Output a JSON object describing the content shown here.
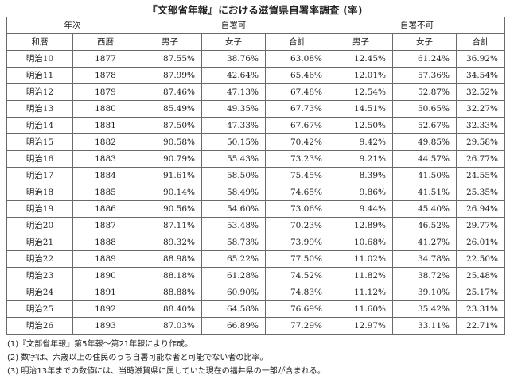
{
  "title": "『文部省年報』における滋賀県自署率調査 (率)",
  "header": {
    "nenji": "年次",
    "group_can": "自署可",
    "group_cannot": "自署不可",
    "wareki": "和暦",
    "seireki": "西暦",
    "male": "男子",
    "female": "女子",
    "total": "合計"
  },
  "rows": [
    {
      "era": "明治10",
      "year": "1877",
      "c": [
        "87.55%",
        "38.76%",
        "63.08%"
      ],
      "n": [
        "12.45%",
        "61.24%",
        "36.92%"
      ]
    },
    {
      "era": "明治11",
      "year": "1878",
      "c": [
        "87.99%",
        "42.64%",
        "65.46%"
      ],
      "n": [
        "12.01%",
        "57.36%",
        "34.54%"
      ]
    },
    {
      "era": "明治12",
      "year": "1879",
      "c": [
        "87.46%",
        "47.13%",
        "67.48%"
      ],
      "n": [
        "12.54%",
        "52.87%",
        "32.52%"
      ]
    },
    {
      "era": "明治13",
      "year": "1880",
      "c": [
        "85.49%",
        "49.35%",
        "67.73%"
      ],
      "n": [
        "14.51%",
        "50.65%",
        "32.27%"
      ]
    },
    {
      "era": "明治14",
      "year": "1881",
      "c": [
        "87.50%",
        "47.33%",
        "67.67%"
      ],
      "n": [
        "12.50%",
        "52.67%",
        "32.33%"
      ]
    },
    {
      "era": "明治15",
      "year": "1882",
      "c": [
        "90.58%",
        "50.15%",
        "70.42%"
      ],
      "n": [
        "9.42%",
        "49.85%",
        "29.58%"
      ]
    },
    {
      "era": "明治16",
      "year": "1883",
      "c": [
        "90.79%",
        "55.43%",
        "73.23%"
      ],
      "n": [
        "9.21%",
        "44.57%",
        "26.77%"
      ]
    },
    {
      "era": "明治17",
      "year": "1884",
      "c": [
        "91.61%",
        "58.50%",
        "75.45%"
      ],
      "n": [
        "8.39%",
        "41.50%",
        "24.55%"
      ]
    },
    {
      "era": "明治18",
      "year": "1885",
      "c": [
        "90.14%",
        "58.49%",
        "74.65%"
      ],
      "n": [
        "9.86%",
        "41.51%",
        "25.35%"
      ]
    },
    {
      "era": "明治19",
      "year": "1886",
      "c": [
        "90.56%",
        "54.60%",
        "73.06%"
      ],
      "n": [
        "9.44%",
        "45.40%",
        "26.94%"
      ]
    },
    {
      "era": "明治20",
      "year": "1887",
      "c": [
        "87.11%",
        "53.48%",
        "70.23%"
      ],
      "n": [
        "12.89%",
        "46.52%",
        "29.77%"
      ]
    },
    {
      "era": "明治21",
      "year": "1888",
      "c": [
        "89.32%",
        "58.73%",
        "73.99%"
      ],
      "n": [
        "10.68%",
        "41.27%",
        "26.01%"
      ]
    },
    {
      "era": "明治22",
      "year": "1889",
      "c": [
        "88.98%",
        "65.22%",
        "77.50%"
      ],
      "n": [
        "11.02%",
        "34.78%",
        "22.50%"
      ]
    },
    {
      "era": "明治23",
      "year": "1890",
      "c": [
        "88.18%",
        "61.28%",
        "74.52%"
      ],
      "n": [
        "11.82%",
        "38.72%",
        "25.48%"
      ]
    },
    {
      "era": "明治24",
      "year": "1891",
      "c": [
        "88.88%",
        "60.90%",
        "74.83%"
      ],
      "n": [
        "11.12%",
        "39.10%",
        "25.17%"
      ]
    },
    {
      "era": "明治25",
      "year": "1892",
      "c": [
        "88.40%",
        "64.58%",
        "76.69%"
      ],
      "n": [
        "11.60%",
        "35.42%",
        "23.31%"
      ]
    },
    {
      "era": "明治26",
      "year": "1893",
      "c": [
        "87.03%",
        "66.89%",
        "77.29%"
      ],
      "n": [
        "12.97%",
        "33.11%",
        "22.71%"
      ]
    }
  ],
  "notes": [
    "(1)『文部省年報』第5年報～第21年報により作成。",
    "(2) 数字は、六歳以上の住民のうち自署可能な者と可能でない者の比率。",
    "(3) 明治13年までの数値には、当時滋賀県に属していた現在の福井県の一部が含まれる。"
  ]
}
